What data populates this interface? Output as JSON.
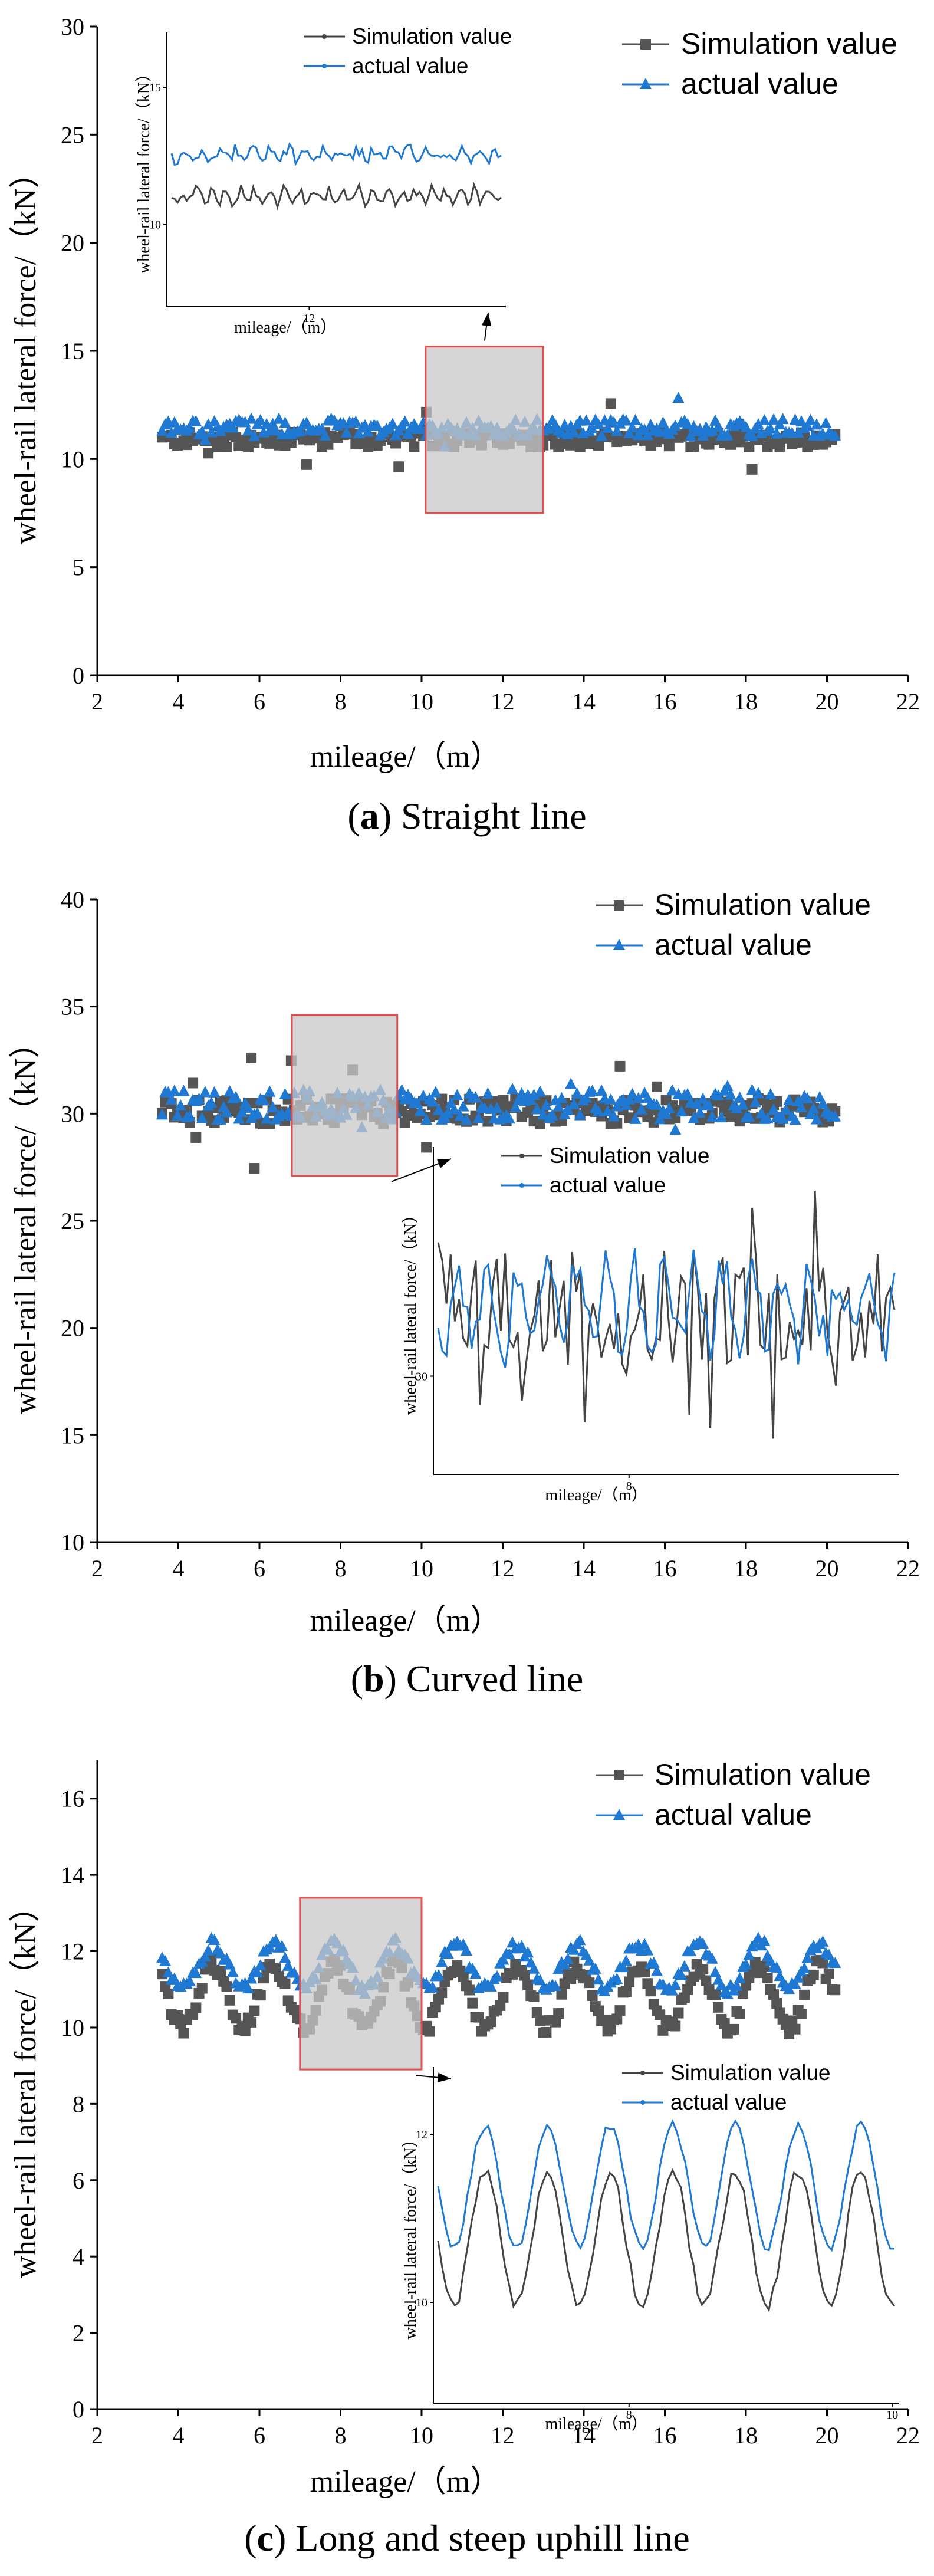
{
  "chart_data": [
    {
      "type": "scatter",
      "caption_letter": "a",
      "caption_text": " Straight line",
      "xlabel": "mileage/（m）",
      "ylabel": "wheel-rail lateral force/（kN）",
      "xlim": [
        2,
        22
      ],
      "ylim": [
        0,
        30
      ],
      "xticks": [
        2,
        4,
        6,
        8,
        10,
        12,
        14,
        16,
        18,
        20,
        22
      ],
      "yticks": [
        0,
        5,
        10,
        15,
        20,
        25,
        30
      ],
      "legend": [
        "Simulation value",
        "actual value"
      ],
      "legend_position": "top-right",
      "colors": {
        "simulation": "#555555",
        "actual": "#1f78d1"
      },
      "x_range": [
        3.6,
        20.2
      ],
      "series": [
        {
          "name": "Simulation value",
          "mean": 10.9,
          "spread": 0.35,
          "outlier_low": 9.3,
          "outlier_high": 12.7
        },
        {
          "name": "actual value",
          "mean": 11.45,
          "spread": 0.4,
          "outlier_low": 10.2,
          "outlier_high": 12.9
        }
      ],
      "zoom_box": {
        "x": [
          10.1,
          13.0
        ],
        "y": [
          7.5,
          15.2
        ]
      },
      "inset": {
        "xlabel": "mileage/（m）",
        "ylabel": "wheel-rail lateral force/（kN）",
        "yticks": [
          10,
          15
        ],
        "xticks": [
          12
        ],
        "legend": [
          "Simulation value",
          "actual value"
        ]
      }
    },
    {
      "type": "scatter",
      "caption_letter": "b",
      "caption_text": " Curved line",
      "xlabel": "mileage/（m）",
      "ylabel": "wheel-rail lateral force/（kN）",
      "xlim": [
        2,
        22
      ],
      "ylim": [
        10,
        40
      ],
      "xticks": [
        2,
        4,
        6,
        8,
        10,
        12,
        14,
        16,
        18,
        20,
        22
      ],
      "yticks": [
        10,
        15,
        20,
        25,
        30,
        35,
        40
      ],
      "legend": [
        "Simulation value",
        "actual value"
      ],
      "legend_position": "top-right",
      "colors": {
        "simulation": "#555555",
        "actual": "#1f78d1"
      },
      "x_range": [
        3.6,
        20.2
      ],
      "series": [
        {
          "name": "Simulation value",
          "mean": 30.1,
          "spread": 0.6,
          "outlier_low": 27.2,
          "outlier_high": 34.1
        },
        {
          "name": "actual value",
          "mean": 30.4,
          "spread": 0.7,
          "outlier_low": 29.0,
          "outlier_high": 31.6
        }
      ],
      "zoom_box": {
        "x": [
          6.8,
          9.4
        ],
        "y": [
          27.1,
          34.6
        ]
      },
      "inset": {
        "xlabel": "mileage/（m）",
        "ylabel": "wheel-rail lateral force/（kN）",
        "yticks": [
          30
        ],
        "xticks": [
          8
        ],
        "legend": [
          "Simulation value",
          "actual value"
        ]
      }
    },
    {
      "type": "scatter",
      "caption_letter": "c",
      "caption_text": " Long and steep uphill line",
      "xlabel": "mileage/（m）",
      "ylabel": "wheel-rail lateral force/（kN）",
      "xlim": [
        2,
        22
      ],
      "ylim": [
        0,
        17
      ],
      "xticks": [
        2,
        4,
        6,
        8,
        10,
        12,
        14,
        16,
        18,
        20,
        22
      ],
      "yticks": [
        0,
        2,
        4,
        6,
        8,
        10,
        12,
        14,
        16
      ],
      "legend": [
        "Simulation value",
        "actual value"
      ],
      "legend_position": "top-right",
      "colors": {
        "simulation": "#555555",
        "actual": "#1f78d1"
      },
      "x_range": [
        3.6,
        20.2
      ],
      "series": [
        {
          "name": "Simulation value",
          "mean": 10.8,
          "spread": 0.8,
          "outlier_low": 9.6,
          "outlier_high": 12.4
        },
        {
          "name": "actual value",
          "mean": 11.6,
          "spread": 0.6,
          "outlier_low": 10.4,
          "outlier_high": 13.2
        }
      ],
      "zoom_box": {
        "x": [
          7.0,
          10.0
        ],
        "y": [
          8.9,
          13.4
        ]
      },
      "inset": {
        "xlabel": "mileage/（m）",
        "ylabel": "wheel-rail lateral force/（kN）",
        "yticks": [
          10,
          12
        ],
        "xticks": [
          8,
          10
        ],
        "legend": [
          "Simulation value",
          "actual value"
        ]
      }
    }
  ]
}
